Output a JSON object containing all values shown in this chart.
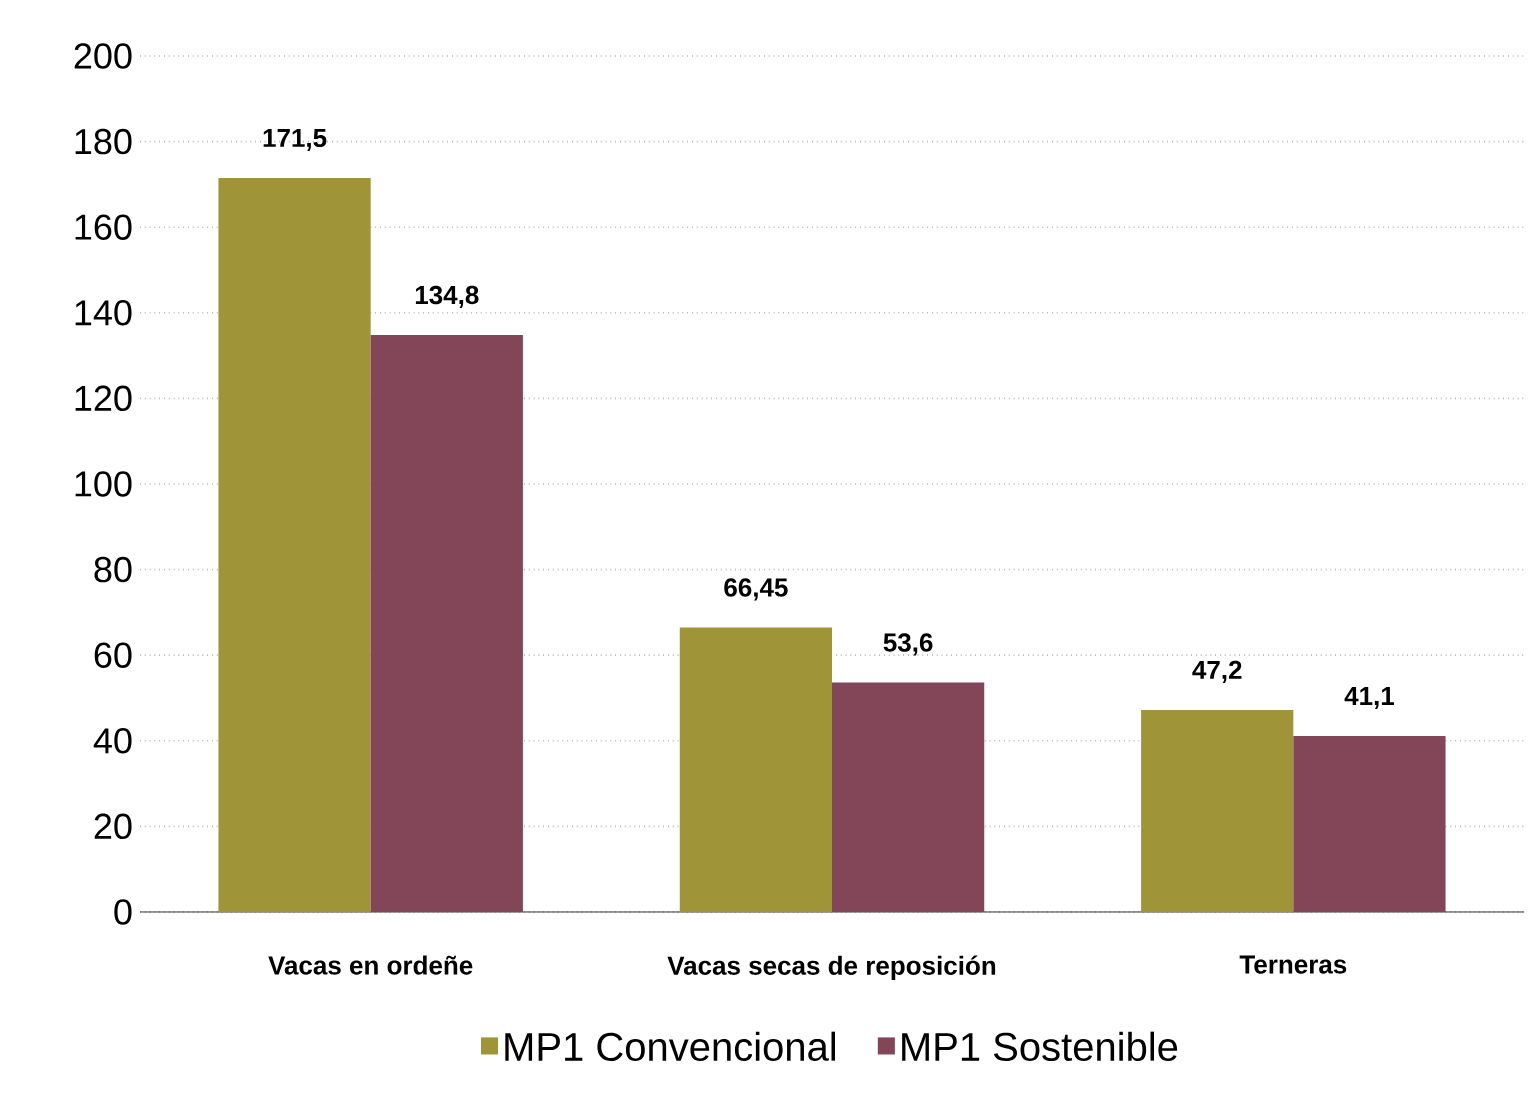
{
  "chart_data": {
    "type": "bar",
    "categories": [
      "Vacas en ordeñe",
      "Vacas secas de reposición",
      "Terneras"
    ],
    "series": [
      {
        "name": "MP1 Convencional",
        "color": "#a09438",
        "values": [
          171.5,
          66.45,
          47.2
        ],
        "value_labels": [
          "171,5",
          "66,45",
          "47,2"
        ]
      },
      {
        "name": "MP1 Sostenible",
        "color": "#834558",
        "values": [
          134.8,
          53.6,
          41.1
        ],
        "value_labels": [
          "134,8",
          "53,6",
          "41,1"
        ]
      }
    ],
    "ylim": [
      0,
      200
    ],
    "yticks": [
      0,
      20,
      40,
      60,
      80,
      100,
      120,
      140,
      160,
      180,
      200
    ],
    "grid": "y",
    "legend": "bottom"
  }
}
